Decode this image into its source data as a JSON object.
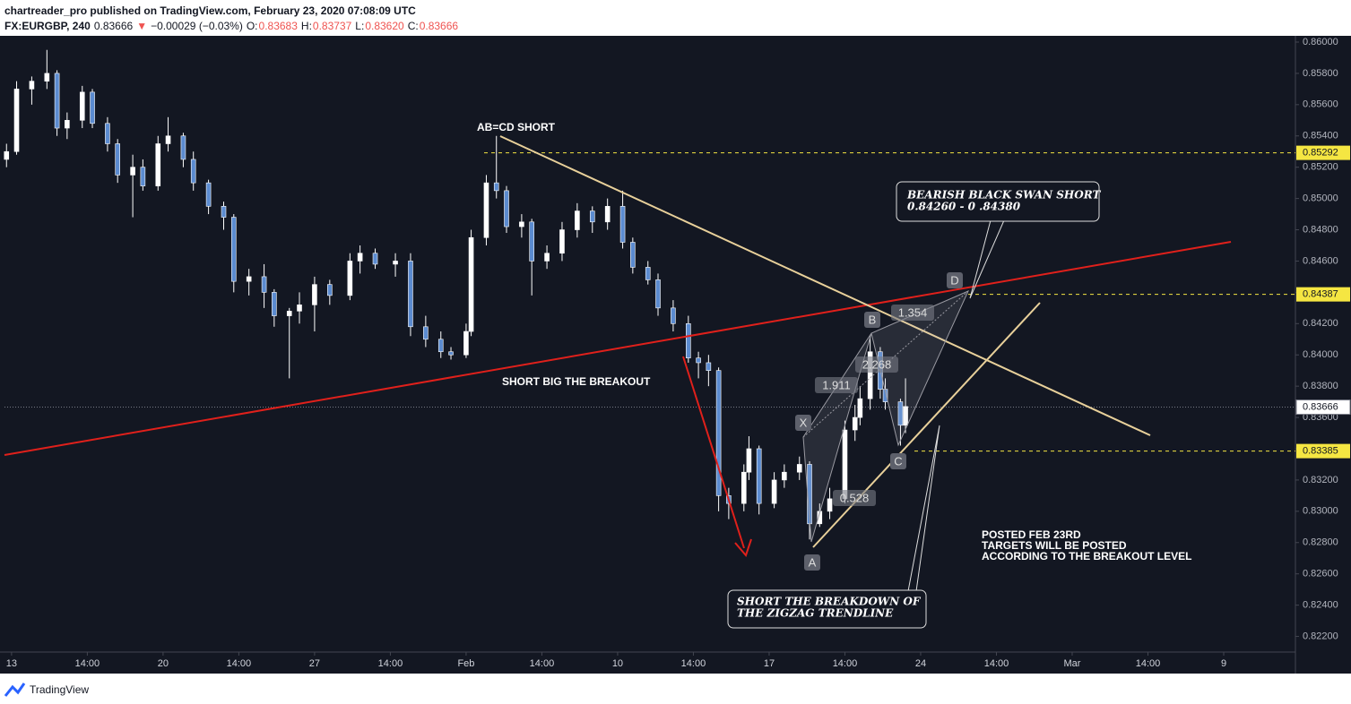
{
  "header": {
    "line1": "chartreader_pro published on TradingView.com, February 23, 2020 07:08:09 UTC",
    "symbol": "FX:EURGBP, 240",
    "price": "0.83666",
    "arrow": "▼",
    "change": "−0.00029 (−0.03%)",
    "o_label": "O:",
    "o": "0.83683",
    "h_label": "H:",
    "h": "0.83737",
    "l_label": "L:",
    "l": "0.83620",
    "c_label": "C:",
    "c": "0.83666"
  },
  "footer": {
    "brand": "TradingView"
  },
  "chart_data": {
    "type": "candlestick",
    "x": [
      -1,
      1,
      4,
      7,
      9,
      11,
      14,
      16,
      19,
      21,
      24,
      26,
      29,
      31,
      34,
      36,
      39,
      42,
      44,
      47,
      50,
      52,
      55,
      57,
      60,
      63,
      67,
      69,
      72,
      76,
      79,
      82,
      85,
      87,
      90,
      91,
      94,
      96,
      98,
      101,
      103,
      106,
      109,
      112,
      115,
      118,
      121,
      123,
      126,
      128,
      131,
      134,
      136,
      138,
      140,
      142,
      145,
      146,
      148,
      151,
      153,
      156,
      158,
      160,
      162,
      165,
      167,
      168,
      170,
      172,
      173,
      176,
      177
    ],
    "open": [
      0.8525,
      0.853,
      0.857,
      0.8575,
      0.858,
      0.8545,
      0.855,
      0.8568,
      0.8548,
      0.8535,
      0.8515,
      0.852,
      0.8508,
      0.8535,
      0.854,
      0.8525,
      0.851,
      0.8495,
      0.8488,
      0.8447,
      0.845,
      0.844,
      0.8425,
      0.8428,
      0.8432,
      0.8445,
      0.8438,
      0.846,
      0.8465,
      0.8458,
      0.846,
      0.8418,
      0.841,
      0.8402,
      0.84,
      0.8415,
      0.8475,
      0.851,
      0.8505,
      0.8482,
      0.8485,
      0.846,
      0.8465,
      0.848,
      0.8492,
      0.8485,
      0.8495,
      0.8472,
      0.8456,
      0.8448,
      0.843,
      0.842,
      0.8398,
      0.8395,
      0.839,
      0.831,
      0.8305,
      0.8325,
      0.834,
      0.8305,
      0.832,
      0.8325,
      0.833,
      0.8292,
      0.83,
      0.8308,
      0.8352,
      0.836,
      0.8372,
      0.8402,
      0.8378,
      0.837,
      0.8355
    ],
    "high": [
      0.8535,
      0.8575,
      0.8578,
      0.8595,
      0.8582,
      0.8555,
      0.8572,
      0.857,
      0.8552,
      0.8538,
      0.8528,
      0.8525,
      0.854,
      0.8552,
      0.8542,
      0.853,
      0.8512,
      0.8498,
      0.849,
      0.8455,
      0.8458,
      0.8442,
      0.843,
      0.844,
      0.845,
      0.8448,
      0.8465,
      0.847,
      0.8468,
      0.8465,
      0.8465,
      0.8425,
      0.8415,
      0.8405,
      0.842,
      0.848,
      0.8515,
      0.854,
      0.8508,
      0.849,
      0.8487,
      0.847,
      0.8485,
      0.8497,
      0.8495,
      0.85,
      0.8505,
      0.8475,
      0.846,
      0.8452,
      0.8435,
      0.8425,
      0.8402,
      0.84,
      0.8392,
      0.8315,
      0.833,
      0.8348,
      0.8342,
      0.8325,
      0.833,
      0.8335,
      0.8332,
      0.8305,
      0.8315,
      0.8358,
      0.8368,
      0.838,
      0.8412,
      0.8405,
      0.8385,
      0.8372,
      0.8385
    ],
    "low": [
      0.852,
      0.8528,
      0.856,
      0.857,
      0.854,
      0.8538,
      0.8545,
      0.8545,
      0.853,
      0.851,
      0.8488,
      0.8505,
      0.8505,
      0.853,
      0.852,
      0.8505,
      0.849,
      0.848,
      0.844,
      0.8438,
      0.843,
      0.8418,
      0.8385,
      0.842,
      0.8415,
      0.8432,
      0.8435,
      0.8452,
      0.8455,
      0.845,
      0.8412,
      0.8405,
      0.8398,
      0.8397,
      0.8398,
      0.8412,
      0.847,
      0.85,
      0.8478,
      0.8475,
      0.8438,
      0.8455,
      0.846,
      0.8475,
      0.8478,
      0.848,
      0.8468,
      0.8452,
      0.8445,
      0.8425,
      0.8415,
      0.8395,
      0.8385,
      0.838,
      0.83,
      0.8295,
      0.83,
      0.832,
      0.8298,
      0.8302,
      0.8315,
      0.832,
      0.8282,
      0.829,
      0.8295,
      0.8305,
      0.8345,
      0.8355,
      0.8365,
      0.8372,
      0.8365,
      0.8342,
      0.835
    ],
    "close": [
      0.853,
      0.857,
      0.8575,
      0.858,
      0.8545,
      0.855,
      0.8568,
      0.8548,
      0.8535,
      0.8515,
      0.852,
      0.8508,
      0.8535,
      0.854,
      0.8525,
      0.851,
      0.8495,
      0.8488,
      0.8447,
      0.845,
      0.844,
      0.8425,
      0.8428,
      0.8432,
      0.8445,
      0.8438,
      0.846,
      0.8465,
      0.8458,
      0.846,
      0.8418,
      0.841,
      0.8402,
      0.84,
      0.8415,
      0.8475,
      0.851,
      0.8505,
      0.8482,
      0.8485,
      0.846,
      0.8465,
      0.848,
      0.8492,
      0.8485,
      0.8495,
      0.8472,
      0.8456,
      0.8448,
      0.843,
      0.842,
      0.8398,
      0.8395,
      0.839,
      0.831,
      0.8305,
      0.8325,
      0.834,
      0.8305,
      0.832,
      0.8325,
      0.833,
      0.8292,
      0.83,
      0.8308,
      0.8352,
      0.836,
      0.8372,
      0.8402,
      0.8378,
      0.837,
      0.8355,
      0.8367
    ],
    "up_color": "#ffffff",
    "down_color": "#5b8bd0",
    "xlim": [
      -1.4,
      254.2
    ],
    "xticks": [
      {
        "value": 0,
        "label": "13"
      },
      {
        "value": 15,
        "label": "14:00"
      },
      {
        "value": 30,
        "label": "20"
      },
      {
        "value": 45,
        "label": "14:00"
      },
      {
        "value": 60,
        "label": "27"
      },
      {
        "value": 75,
        "label": "14:00"
      },
      {
        "value": 90,
        "label": "Feb"
      },
      {
        "value": 105,
        "label": "14:00"
      },
      {
        "value": 120,
        "label": "10"
      },
      {
        "value": 135,
        "label": "14:00"
      },
      {
        "value": 150,
        "label": "17"
      },
      {
        "value": 165,
        "label": "14:00"
      },
      {
        "value": 180,
        "label": "24"
      },
      {
        "value": 195,
        "label": "14:00"
      },
      {
        "value": 210,
        "label": "Mar"
      },
      {
        "value": 225,
        "label": "14:00"
      },
      {
        "value": 240,
        "label": "9"
      }
    ],
    "ylim": [
      0.821,
      0.8604
    ],
    "yticks": [
      {
        "value": 0.822,
        "label": "0.82200"
      },
      {
        "value": 0.824,
        "label": "0.82400"
      },
      {
        "value": 0.826,
        "label": "0.82600"
      },
      {
        "value": 0.828,
        "label": "0.82800"
      },
      {
        "value": 0.83,
        "label": "0.83000"
      },
      {
        "value": 0.832,
        "label": "0.83200"
      },
      {
        "value": 0.834,
        "label": "0.83400"
      },
      {
        "value": 0.836,
        "label": "0.83600"
      },
      {
        "value": 0.838,
        "label": "0.83800"
      },
      {
        "value": 0.84,
        "label": "0.84000"
      },
      {
        "value": 0.842,
        "label": "0.84200"
      },
      {
        "value": 0.844,
        "label": "0.84400"
      },
      {
        "value": 0.846,
        "label": "0.84600"
      },
      {
        "value": 0.848,
        "label": "0.84800"
      },
      {
        "value": 0.85,
        "label": "0.85000"
      },
      {
        "value": 0.852,
        "label": "0.85200"
      },
      {
        "value": 0.854,
        "label": "0.85400"
      },
      {
        "value": 0.856,
        "label": "0.85600"
      },
      {
        "value": 0.858,
        "label": "0.85800"
      },
      {
        "value": 0.86,
        "label": "0.86000"
      }
    ],
    "price_lines": [
      0.85292,
      0.84387,
      0.83385
    ],
    "price_line_color": "#f5e642",
    "last_price": 0.83666,
    "annotations": {
      "abcd": "AB=CD SHORT",
      "breakout": "SHORT BIG THE BREAKOUT",
      "swan": [
        "BEARISH BLACK SWAN SHORT",
        "0.84260 - 0 .84380"
      ],
      "posted": [
        "POSTED FEB 23RD",
        "TARGETS WILL BE POSTED",
        "ACCORDING TO THE BREAKOUT LEVEL"
      ],
      "zigzag": [
        "SHORT THE BREAKDOWN OF",
        "THE ZIGZAG TRENDLINE"
      ]
    },
    "pattern_points": [
      "X",
      "A",
      "B",
      "C",
      "D"
    ],
    "pattern_ratios": [
      "1.911",
      "2.268",
      "1.354",
      "0.528"
    ]
  }
}
